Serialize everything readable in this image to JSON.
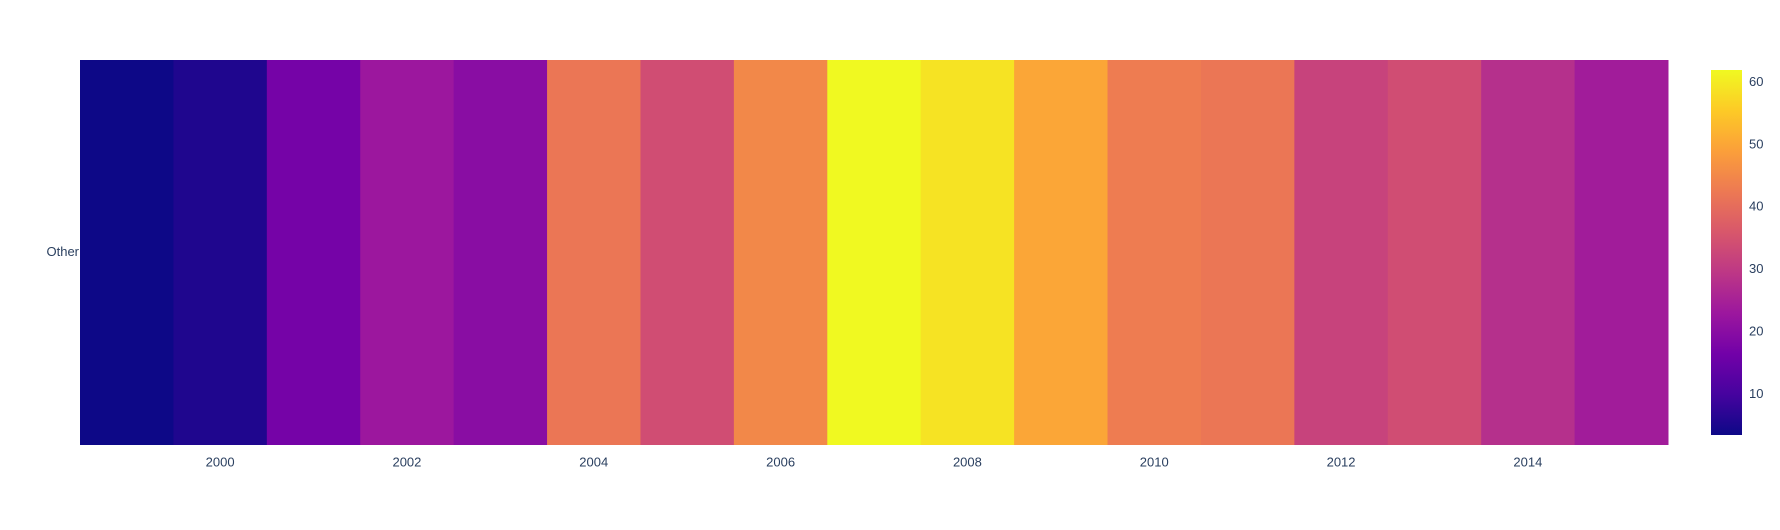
{
  "chart_data": {
    "type": "heatmap",
    "x": [
      1999,
      2000,
      2001,
      2002,
      2003,
      2004,
      2005,
      2006,
      2007,
      2008,
      2009,
      2010,
      2011,
      2012,
      2013,
      2014,
      2015
    ],
    "y": [
      "Other"
    ],
    "z": [
      [
        3.5,
        5.5,
        17,
        23,
        20,
        42,
        34,
        45,
        62,
        59,
        50,
        43,
        42,
        32,
        34,
        28,
        24
      ]
    ],
    "x_tick_labels": [
      "2000",
      "2002",
      "2004",
      "2006",
      "2008",
      "2010",
      "2012",
      "2014"
    ],
    "x_tick_values": [
      2000,
      2002,
      2004,
      2006,
      2008,
      2010,
      2012,
      2014
    ],
    "y_tick_labels": [
      "Other"
    ],
    "colorscale": [
      "#0d0887",
      "#46039f",
      "#7201a8",
      "#9c179e",
      "#bd3786",
      "#d8576b",
      "#ed7953",
      "#fb9f3a",
      "#fdca26",
      "#f0f921"
    ],
    "zmin": 3.5,
    "zmax": 62,
    "colorbar": {
      "tick_values": [
        10,
        20,
        30,
        40,
        50,
        60
      ],
      "tick_labels": [
        "10",
        "20",
        "30",
        "40",
        "50",
        "60"
      ]
    }
  }
}
